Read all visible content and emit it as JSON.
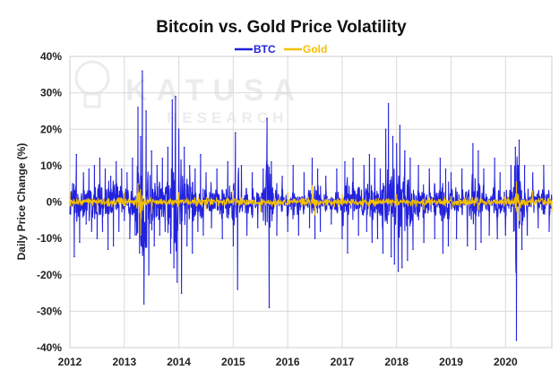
{
  "chart_data": {
    "type": "line",
    "title": "Bitcoin vs. Gold Price Volatility",
    "xlabel": "",
    "ylabel": "Daily Price Change (%)",
    "xlim": [
      2012,
      2020.85
    ],
    "ylim": [
      -40,
      40
    ],
    "yticks": [
      "40%",
      "30%",
      "20%",
      "10%",
      "0%",
      "-10%",
      "-20%",
      "-30%",
      "-40%"
    ],
    "ytick_values": [
      40,
      30,
      20,
      10,
      0,
      -10,
      -20,
      -30,
      -40
    ],
    "xticks": [
      "2012",
      "2013",
      "2014",
      "2015",
      "2016",
      "2017",
      "2018",
      "2019",
      "2020"
    ],
    "xtick_values": [
      2012,
      2013,
      2014,
      2015,
      2016,
      2017,
      2018,
      2019,
      2020
    ],
    "grid": true,
    "legend": "top-center",
    "colors": {
      "btc": "#2222dd",
      "gold": "#f5c000"
    },
    "watermark": {
      "line1": "KATUSA",
      "line2": "RESEARCH"
    },
    "series": [
      {
        "name": "BTC",
        "x": [
          2012.05,
          2012.08,
          2012.12,
          2012.18,
          2012.25,
          2012.3,
          2012.35,
          2012.4,
          2012.45,
          2012.5,
          2012.55,
          2012.6,
          2012.65,
          2012.7,
          2012.75,
          2012.8,
          2012.85,
          2012.9,
          2012.95,
          2013.0,
          2013.05,
          2013.1,
          2013.15,
          2013.2,
          2013.25,
          2013.28,
          2013.3,
          2013.33,
          2013.36,
          2013.4,
          2013.45,
          2013.5,
          2013.55,
          2013.6,
          2013.65,
          2013.7,
          2013.75,
          2013.8,
          2013.85,
          2013.88,
          2013.91,
          2013.94,
          2013.97,
          2014.0,
          2014.05,
          2014.1,
          2014.15,
          2014.2,
          2014.25,
          2014.3,
          2014.35,
          2014.4,
          2014.45,
          2014.5,
          2014.6,
          2014.7,
          2014.8,
          2014.9,
          2015.0,
          2015.04,
          2015.08,
          2015.15,
          2015.25,
          2015.35,
          2015.45,
          2015.55,
          2015.62,
          2015.66,
          2015.7,
          2015.8,
          2015.9,
          2016.0,
          2016.1,
          2016.2,
          2016.3,
          2016.4,
          2016.45,
          2016.5,
          2016.55,
          2016.6,
          2016.7,
          2016.8,
          2016.9,
          2017.0,
          2017.05,
          2017.1,
          2017.2,
          2017.3,
          2017.4,
          2017.45,
          2017.5,
          2017.55,
          2017.6,
          2017.65,
          2017.7,
          2017.75,
          2017.8,
          2017.85,
          2017.9,
          2017.93,
          2017.96,
          2018.0,
          2018.03,
          2018.06,
          2018.1,
          2018.15,
          2018.2,
          2018.25,
          2018.3,
          2018.4,
          2018.5,
          2018.6,
          2018.7,
          2018.8,
          2018.85,
          2018.9,
          2018.95,
          2019.0,
          2019.1,
          2019.2,
          2019.3,
          2019.4,
          2019.45,
          2019.5,
          2019.55,
          2019.6,
          2019.7,
          2019.8,
          2019.85,
          2019.9,
          2020.0,
          2020.1,
          2020.15,
          2020.18,
          2020.2,
          2020.25,
          2020.3,
          2020.35,
          2020.4,
          2020.5,
          2020.6,
          2020.7,
          2020.8
        ],
        "values": [
          5,
          -15,
          13,
          -11,
          8,
          -6,
          9,
          -8,
          10,
          -10,
          12,
          -8,
          9,
          -13,
          7,
          -12,
          11,
          -8,
          9,
          -5,
          8,
          -10,
          12,
          -9,
          26,
          -14,
          18,
          36,
          -28,
          25,
          -20,
          14,
          -12,
          10,
          -9,
          12,
          -8,
          15,
          -14,
          28,
          -18,
          29,
          -22,
          20,
          -25,
          15,
          -12,
          10,
          -14,
          9,
          -8,
          13,
          -9,
          8,
          -7,
          9,
          -10,
          11,
          -12,
          19,
          -24,
          10,
          -9,
          8,
          -7,
          9,
          23,
          -29,
          11,
          -9,
          7,
          -8,
          10,
          -9,
          8,
          -7,
          12,
          -10,
          9,
          -8,
          7,
          -6,
          9,
          -10,
          11,
          -14,
          12,
          -9,
          10,
          -8,
          13,
          -11,
          12,
          -10,
          9,
          -14,
          20,
          27,
          -15,
          18,
          -17,
          16,
          -19,
          21,
          -18,
          14,
          -16,
          12,
          -13,
          10,
          -11,
          9,
          -10,
          12,
          -14,
          9,
          -12,
          8,
          -10,
          9,
          -12,
          16,
          -13,
          14,
          -11,
          9,
          -9,
          12,
          -10,
          8,
          -9,
          10,
          -8,
          15,
          -38,
          17,
          -13,
          10,
          -9,
          8,
          -7,
          10,
          -8
        ]
      },
      {
        "name": "Gold",
        "x": [
          2012.0,
          2012.5,
          2013.0,
          2013.25,
          2013.3,
          2013.5,
          2014.0,
          2014.5,
          2015.0,
          2015.5,
          2016.0,
          2016.45,
          2016.5,
          2017.0,
          2017.5,
          2018.0,
          2018.5,
          2019.0,
          2019.5,
          2020.0,
          2020.2,
          2020.25,
          2020.5,
          2020.85
        ],
        "values": [
          2.5,
          -2.5,
          2.5,
          5,
          -9,
          -3,
          2.5,
          -2,
          3,
          -2.5,
          2.5,
          4.5,
          -3.5,
          2,
          -2,
          2,
          -2,
          1.5,
          -2,
          2.5,
          5.5,
          -5,
          3,
          -2.5
        ]
      }
    ]
  }
}
